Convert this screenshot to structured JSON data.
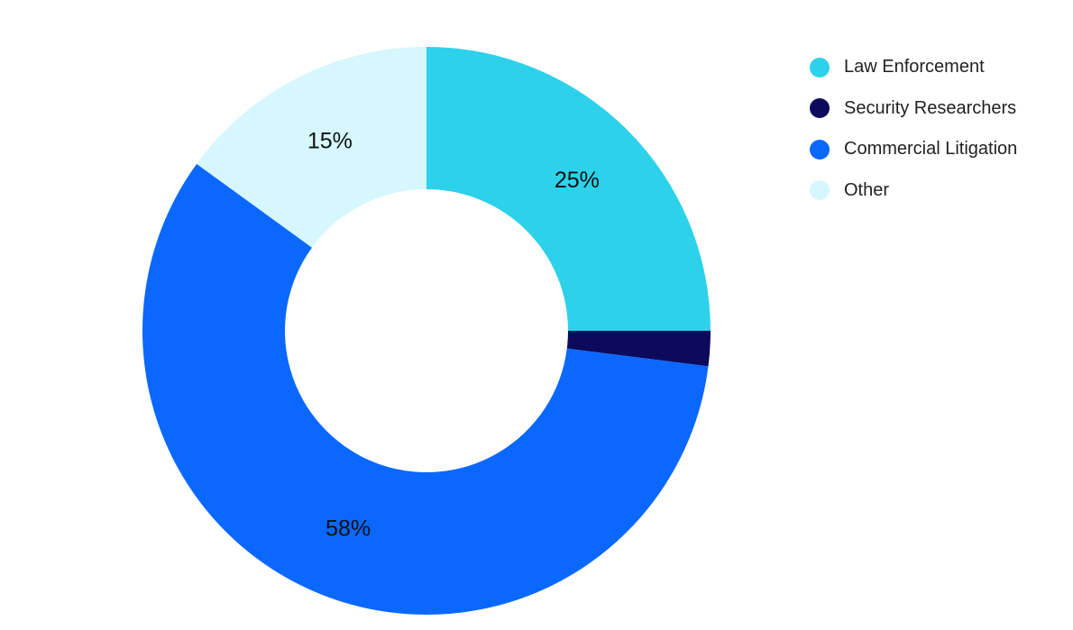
{
  "chart_data": {
    "type": "pie",
    "variant": "donut",
    "categories": [
      "Law Enforcement",
      "Security Researchers",
      "Commercial Litigation",
      "Other"
    ],
    "values": [
      25,
      2,
      58,
      15
    ],
    "data_labels": [
      "25%",
      "",
      "58%",
      "15%"
    ],
    "colors": [
      "#2DD1EA",
      "#0D0A5C",
      "#0A68FF",
      "#D6F7FD"
    ],
    "legend_placement": "top-right",
    "start_angle": "12 o'clock",
    "direction": "clockwise"
  }
}
